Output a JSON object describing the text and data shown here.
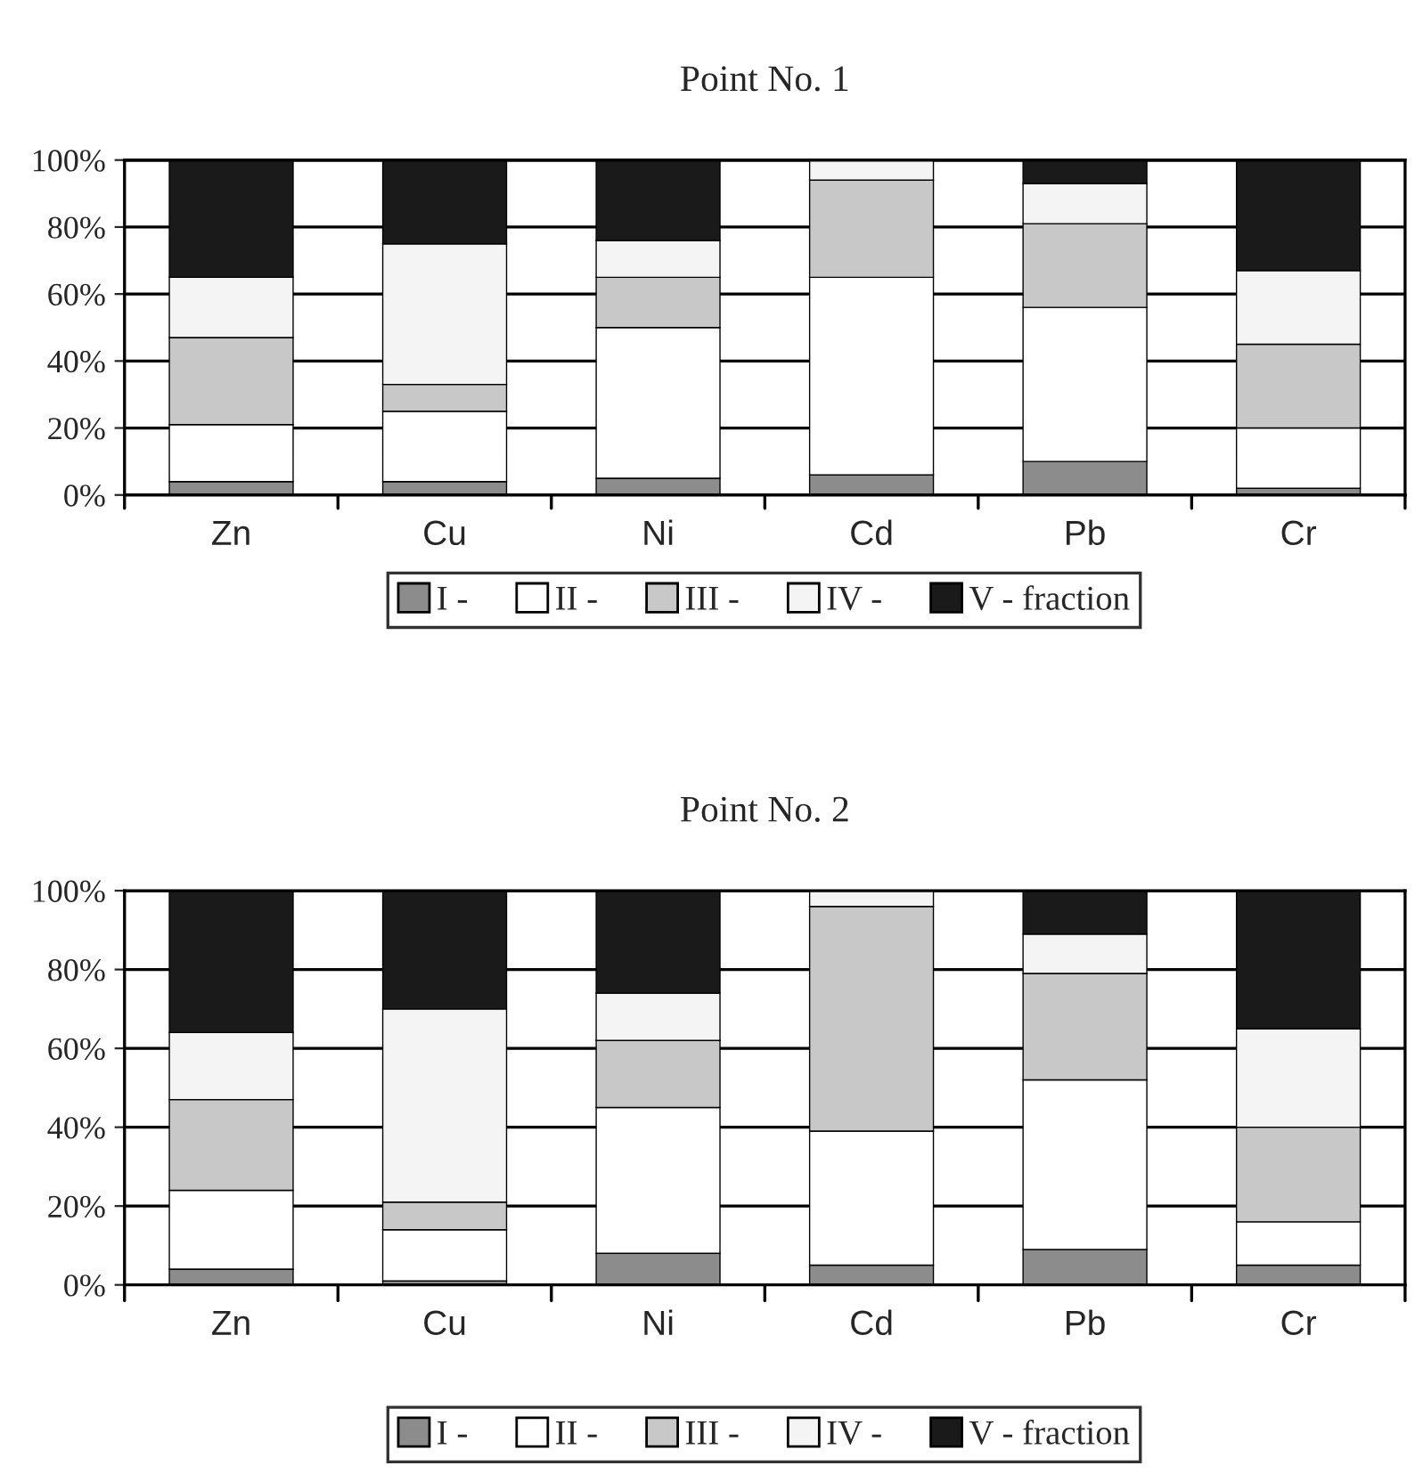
{
  "chart_data": [
    {
      "type": "bar",
      "title": "Point No. 1",
      "categories": [
        "Zn",
        "Cu",
        "Ni",
        "Cd",
        "Pb",
        "Cr"
      ],
      "stacked": true,
      "ylim": [
        0,
        100
      ],
      "yticks": [
        {
          "value": 0,
          "label": "0%"
        },
        {
          "value": 20,
          "label": "20%"
        },
        {
          "value": 40,
          "label": "40%"
        },
        {
          "value": 60,
          "label": "60%"
        },
        {
          "value": 80,
          "label": "80%"
        },
        {
          "value": 100,
          "label": "100%"
        }
      ],
      "grid": "y",
      "legend": "bottom",
      "series": [
        {
          "name": "I -",
          "color": "#8c8c8c",
          "values": [
            4,
            4,
            5,
            6,
            10,
            2
          ]
        },
        {
          "name": "II -",
          "color": "#ffffff",
          "values": [
            17,
            21,
            45,
            59,
            46,
            18
          ]
        },
        {
          "name": "III -",
          "color": "#c8c8c8",
          "values": [
            26,
            8,
            15,
            29,
            25,
            25
          ]
        },
        {
          "name": "IV -",
          "color": "#f4f4f4",
          "values": [
            18,
            42,
            11,
            6,
            12,
            22
          ]
        },
        {
          "name": "V - fraction",
          "color": "#1a1a1a",
          "values": [
            35,
            25,
            24,
            null,
            7,
            33
          ]
        }
      ]
    },
    {
      "type": "bar",
      "title": "Point No. 2",
      "categories": [
        "Zn",
        "Cu",
        "Ni",
        "Cd",
        "Pb",
        "Cr"
      ],
      "stacked": true,
      "ylim": [
        0,
        100
      ],
      "yticks": [
        {
          "value": 0,
          "label": "0%"
        },
        {
          "value": 20,
          "label": "20%"
        },
        {
          "value": 40,
          "label": "40%"
        },
        {
          "value": 60,
          "label": "60%"
        },
        {
          "value": 80,
          "label": "80%"
        },
        {
          "value": 100,
          "label": "100%"
        }
      ],
      "grid": "y",
      "legend": "bottom",
      "series": [
        {
          "name": "I -",
          "color": "#8c8c8c",
          "values": [
            4,
            1,
            8,
            5,
            9,
            5
          ]
        },
        {
          "name": "II -",
          "color": "#ffffff",
          "values": [
            20,
            13,
            37,
            34,
            43,
            11
          ]
        },
        {
          "name": "III -",
          "color": "#c8c8c8",
          "values": [
            23,
            7,
            17,
            57,
            27,
            24
          ]
        },
        {
          "name": "IV -",
          "color": "#f4f4f4",
          "values": [
            17,
            49,
            12,
            4,
            10,
            25
          ]
        },
        {
          "name": "V - fraction",
          "color": "#1a1a1a",
          "values": [
            36,
            30,
            26,
            null,
            11,
            35
          ]
        }
      ]
    }
  ]
}
